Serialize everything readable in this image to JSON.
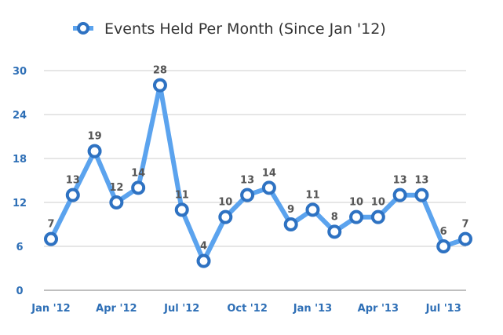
{
  "chart_data": {
    "type": "line",
    "title": "Events Held Per Month (Since Jan '12)",
    "legend": {
      "entries": [
        "Events Held Per Month (Since Jan '12)"
      ],
      "placement": "top-center"
    },
    "xlabel": "",
    "ylabel": "",
    "x": [
      "Jan '12",
      "Feb '12",
      "Mar '12",
      "Apr '12",
      "May '12",
      "Jun '12",
      "Jul '12",
      "Aug '12",
      "Sep '12",
      "Oct '12",
      "Nov '12",
      "Dec '12",
      "Jan '13",
      "Feb '13",
      "Mar '13",
      "Apr '13",
      "May '13",
      "Jun '13",
      "Jul '13",
      "Aug '13"
    ],
    "x_tick_labels": [
      "Jan '12",
      "Apr '12",
      "Jul '12",
      "Oct '12",
      "Jan '13",
      "Apr '13",
      "Jul '13"
    ],
    "x_tick_indices": [
      0,
      3,
      6,
      9,
      12,
      15,
      18
    ],
    "series": [
      {
        "name": "Events Held Per Month (Since Jan '12)",
        "values": [
          7,
          13,
          19,
          12,
          14,
          28,
          11,
          4,
          10,
          13,
          14,
          9,
          11,
          8,
          10,
          10,
          13,
          13,
          6,
          7
        ]
      }
    ],
    "ylim": [
      0,
      30
    ],
    "y_ticks": [
      0,
      6,
      12,
      18,
      24,
      30
    ],
    "grid": true,
    "data_labels": true,
    "colors": {
      "line": "#5ba3ee",
      "marker_stroke": "#2e72c2",
      "marker_fill": "#ffffff",
      "axis_text": "#2e6fb6",
      "grid": "#bbbbbb"
    }
  }
}
